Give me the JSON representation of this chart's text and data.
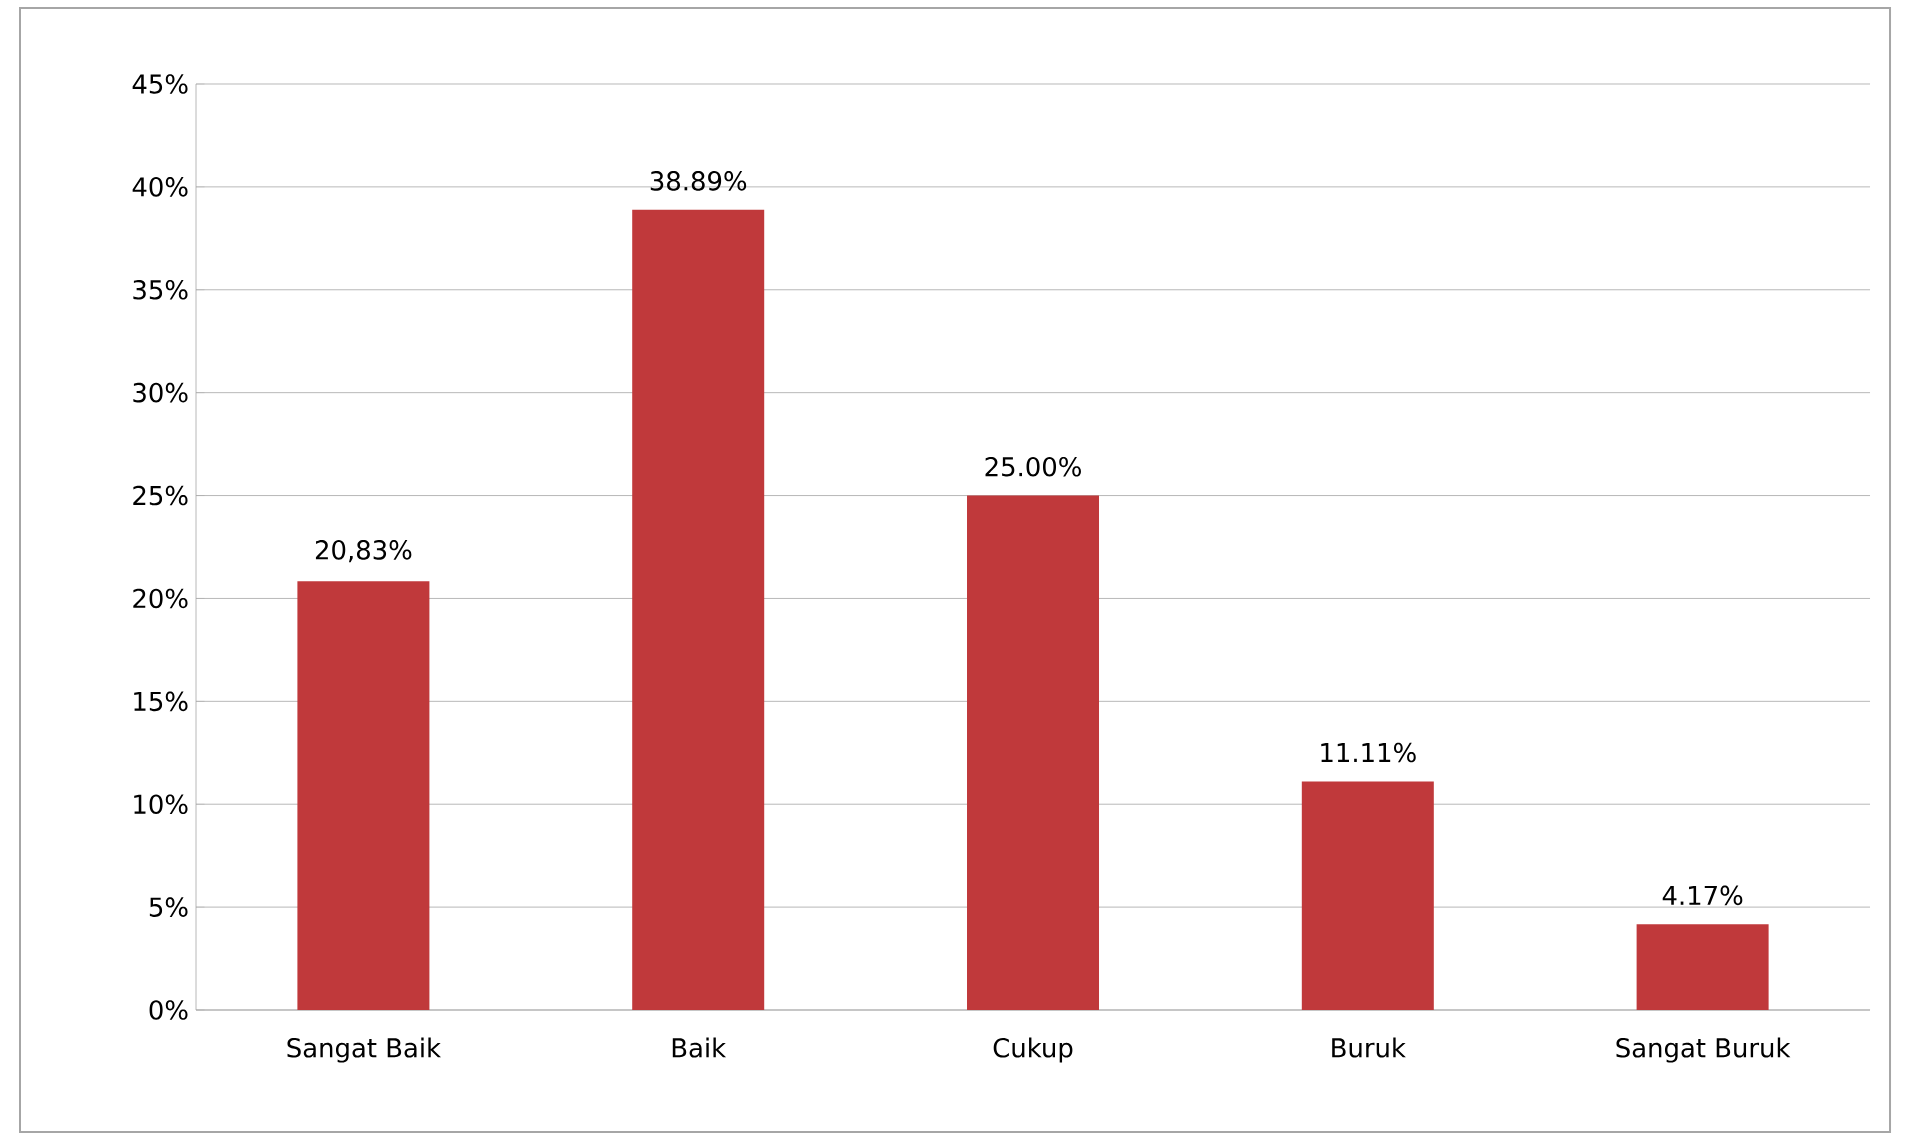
{
  "chart_data": {
    "type": "bar",
    "categories": [
      "Sangat Baik",
      "Baik",
      "Cukup",
      "Buruk",
      "Sangat Buruk"
    ],
    "values": [
      20.83,
      38.89,
      25.0,
      11.11,
      4.17
    ],
    "value_labels": [
      "20,83%",
      "38.89%",
      "25.00%",
      "11.11%",
      "4.17%"
    ],
    "color": "#c0393b",
    "ylim": [
      0,
      45
    ],
    "yticks": [
      {
        "value": 0,
        "label": "0%"
      },
      {
        "value": 5,
        "label": "5%"
      },
      {
        "value": 10,
        "label": "10%"
      },
      {
        "value": 15,
        "label": "15%"
      },
      {
        "value": 20,
        "label": "20%"
      },
      {
        "value": 25,
        "label": "25%"
      },
      {
        "value": 30,
        "label": "30%"
      },
      {
        "value": 35,
        "label": "35%"
      },
      {
        "value": 40,
        "label": "40%"
      },
      {
        "value": 45,
        "label": "45%"
      }
    ],
    "grid": "y"
  }
}
